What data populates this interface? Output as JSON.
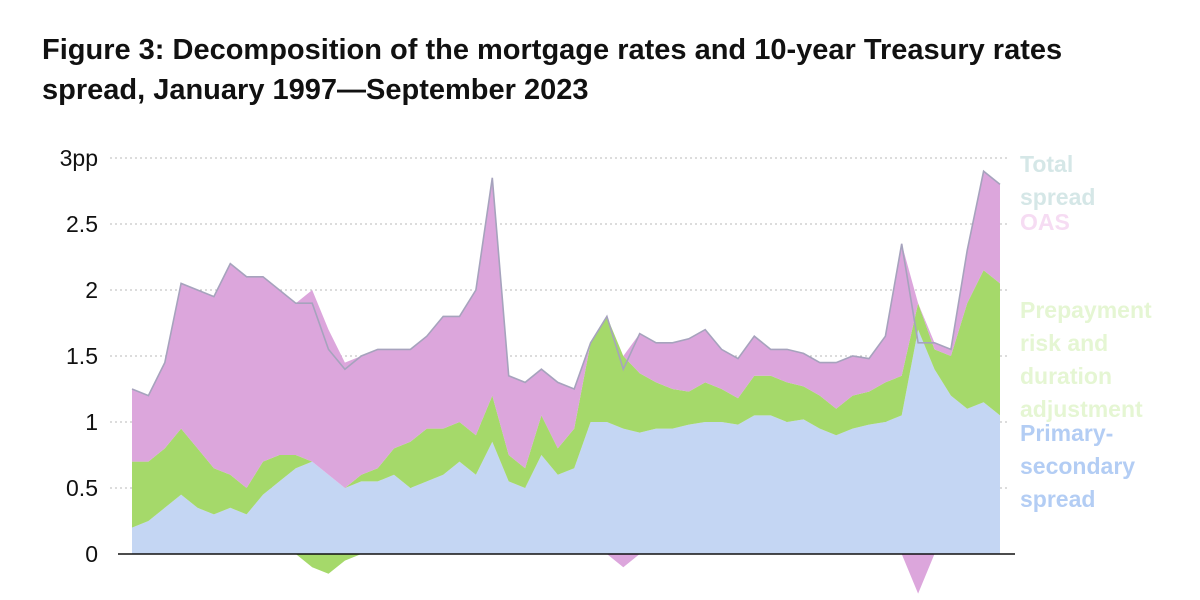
{
  "title": "Figure 3: Decomposition of the mortgage rates and 10-year Treasury rates spread, January 1997—September 2023",
  "colors": {
    "primary_secondary": "#c4d6f3",
    "prepayment": "#a5d96a",
    "oas": "#dca6dc",
    "total": "#a6a3bd",
    "total_label": "#d5e7e7",
    "oas_label": "#f6dcf3",
    "prepayment_label": "#e5f6d3",
    "primary_label": "#b3cdf4"
  },
  "chart_data": {
    "type": "area",
    "title": "Figure 3: Decomposition of the mortgage rates and 10-year Treasury rates spread, January 1997—September 2023",
    "xlabel": "",
    "ylabel": "",
    "x_range": [
      "1997-01",
      "2023-09"
    ],
    "x_ticks": [],
    "ylim": [
      0,
      3
    ],
    "y_ticks": [
      {
        "value": 0,
        "label": "0"
      },
      {
        "value": 0.5,
        "label": "0.5"
      },
      {
        "value": 1,
        "label": "1"
      },
      {
        "value": 1.5,
        "label": "1.5"
      },
      {
        "value": 2,
        "label": "2"
      },
      {
        "value": 2.5,
        "label": "2.5"
      },
      {
        "value": 3,
        "label": "3pp"
      }
    ],
    "grid": "horizontal dotted",
    "legend": "right, inline labels",
    "x": [
      "1997-01",
      "1997-07",
      "1998-01",
      "1998-07",
      "1999-01",
      "1999-07",
      "2000-01",
      "2000-07",
      "2001-01",
      "2001-07",
      "2002-01",
      "2002-07",
      "2003-01",
      "2003-07",
      "2004-01",
      "2004-07",
      "2005-01",
      "2005-07",
      "2006-01",
      "2006-07",
      "2007-01",
      "2007-07",
      "2008-01",
      "2008-07",
      "2009-01",
      "2009-07",
      "2010-01",
      "2010-07",
      "2011-01",
      "2011-07",
      "2012-01",
      "2012-07",
      "2013-01",
      "2013-07",
      "2014-01",
      "2014-07",
      "2015-01",
      "2015-07",
      "2016-01",
      "2016-07",
      "2017-01",
      "2017-07",
      "2018-01",
      "2018-07",
      "2019-01",
      "2019-07",
      "2020-01",
      "2020-07",
      "2021-01",
      "2021-07",
      "2022-01",
      "2022-07",
      "2023-01",
      "2023-09"
    ],
    "series": [
      {
        "name": "Primary-secondary spread",
        "color_key": "primary_secondary",
        "values": [
          0.2,
          0.25,
          0.35,
          0.45,
          0.35,
          0.3,
          0.35,
          0.3,
          0.45,
          0.55,
          0.65,
          0.7,
          0.6,
          0.5,
          0.55,
          0.55,
          0.6,
          0.5,
          0.55,
          0.6,
          0.7,
          0.6,
          0.85,
          0.55,
          0.5,
          0.75,
          0.6,
          0.65,
          1.0,
          1.0,
          0.95,
          0.92,
          0.95,
          0.95,
          0.98,
          1.0,
          1.0,
          0.98,
          1.05,
          1.05,
          1.0,
          1.02,
          0.95,
          0.9,
          0.95,
          0.98,
          1.0,
          1.05,
          1.7,
          1.4,
          1.2,
          1.1,
          1.15,
          1.05
        ]
      },
      {
        "name": "Prepayment risk and duration adjustment",
        "color_key": "prepayment",
        "values": [
          0.5,
          0.45,
          0.45,
          0.5,
          0.45,
          0.35,
          0.25,
          0.2,
          0.25,
          0.2,
          0.1,
          -0.1,
          -0.15,
          -0.05,
          0.05,
          0.1,
          0.2,
          0.35,
          0.4,
          0.35,
          0.3,
          0.3,
          0.35,
          0.2,
          0.15,
          0.3,
          0.2,
          0.3,
          0.6,
          0.8,
          0.55,
          0.45,
          0.35,
          0.3,
          0.25,
          0.3,
          0.25,
          0.2,
          0.3,
          0.3,
          0.3,
          0.25,
          0.25,
          0.2,
          0.25,
          0.25,
          0.3,
          0.3,
          0.2,
          0.15,
          0.3,
          0.8,
          1.0,
          1.0
        ]
      },
      {
        "name": "OAS",
        "color_key": "oas",
        "values": [
          0.55,
          0.5,
          0.65,
          1.1,
          1.2,
          1.3,
          1.6,
          1.6,
          1.4,
          1.25,
          1.15,
          1.3,
          1.1,
          0.95,
          0.9,
          0.9,
          0.75,
          0.7,
          0.7,
          0.85,
          0.8,
          1.1,
          1.65,
          0.6,
          0.65,
          0.35,
          0.5,
          0.3,
          0.0,
          0.0,
          -0.1,
          0.3,
          0.3,
          0.35,
          0.4,
          0.4,
          0.3,
          0.3,
          0.3,
          0.2,
          0.25,
          0.25,
          0.25,
          0.35,
          0.3,
          0.25,
          0.35,
          1.0,
          -0.3,
          0.05,
          0.05,
          0.4,
          0.75,
          0.75
        ]
      },
      {
        "name": "Total spread",
        "color_key": "total",
        "values": [
          1.25,
          1.2,
          1.45,
          2.05,
          2.0,
          1.95,
          2.2,
          2.1,
          2.1,
          2.0,
          1.9,
          1.9,
          1.55,
          1.4,
          1.5,
          1.55,
          1.55,
          1.55,
          1.65,
          1.8,
          1.8,
          2.0,
          2.85,
          1.35,
          1.3,
          1.4,
          1.3,
          1.25,
          1.6,
          1.8,
          1.4,
          1.67,
          1.6,
          1.6,
          1.63,
          1.7,
          1.55,
          1.48,
          1.65,
          1.55,
          1.55,
          1.52,
          1.45,
          1.45,
          1.5,
          1.48,
          1.65,
          2.35,
          1.6,
          1.6,
          1.55,
          2.3,
          2.9,
          2.8
        ]
      }
    ]
  },
  "legend_labels": {
    "total": [
      "Total",
      "spread"
    ],
    "oas": [
      "OAS"
    ],
    "prepayment": [
      "Prepayment",
      "risk and",
      "duration",
      "adjustment"
    ],
    "primary": [
      "Primary-",
      "secondary",
      "spread"
    ]
  }
}
